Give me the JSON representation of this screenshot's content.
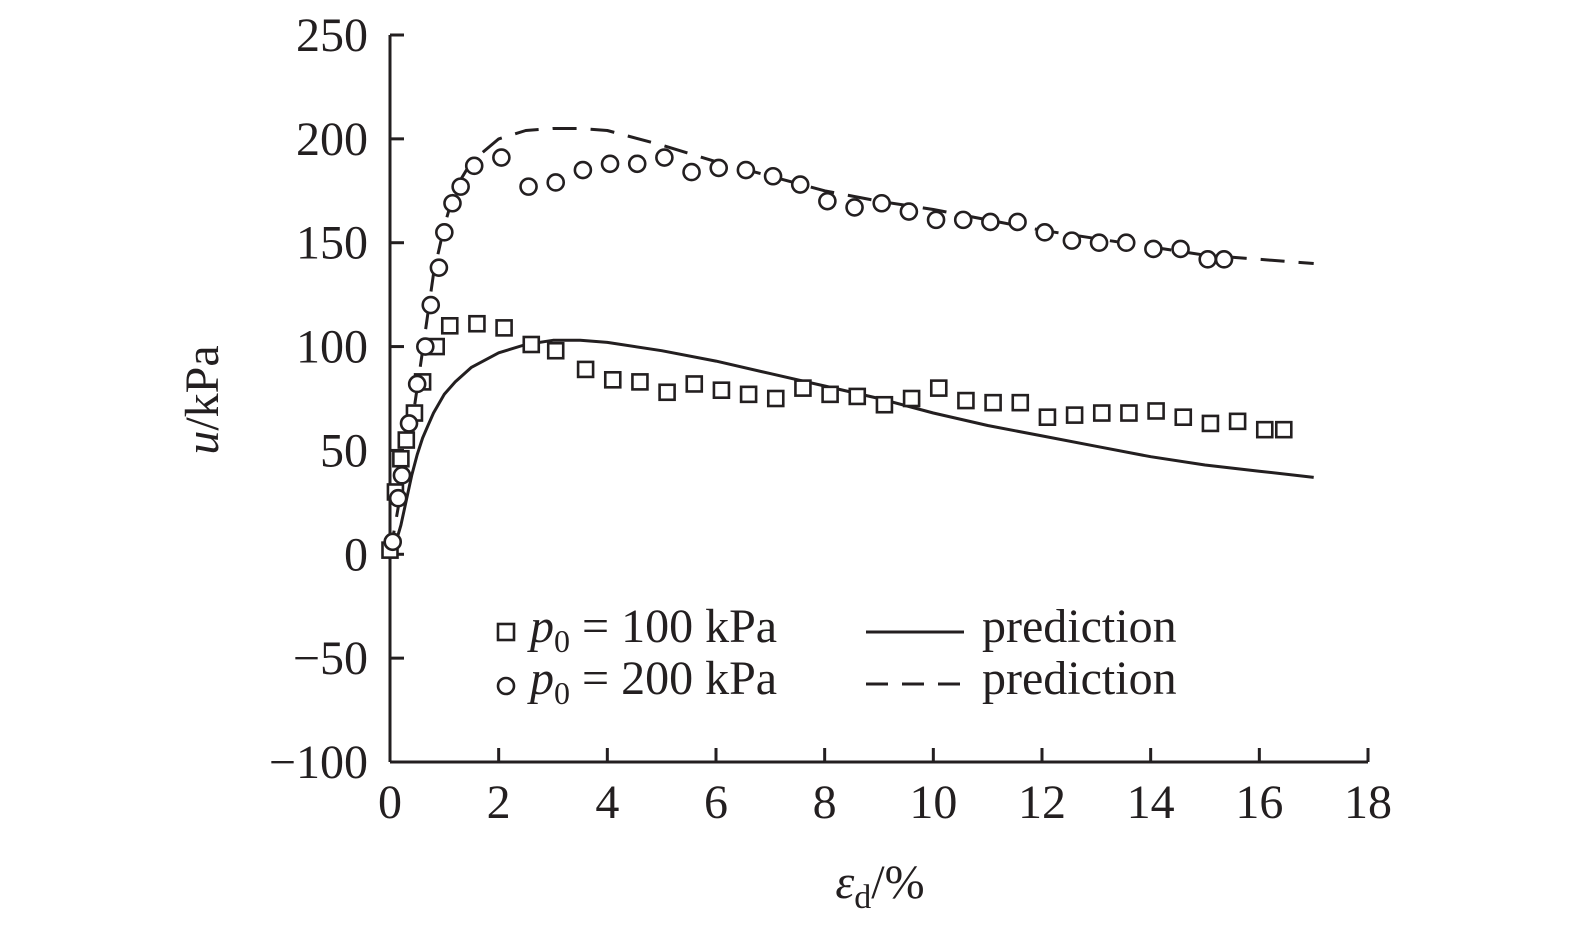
{
  "chart_data": {
    "type": "scatter",
    "xlabel": {
      "symbol": "ε",
      "subscript": "d",
      "unit": "/%"
    },
    "ylabel": {
      "symbol": "u",
      "unit": "/kPa"
    },
    "xlim": [
      0,
      18
    ],
    "ylim": [
      -100,
      250
    ],
    "xticks": [
      0,
      2,
      4,
      6,
      8,
      10,
      12,
      14,
      16,
      18
    ],
    "yticks": [
      -100,
      -50,
      0,
      50,
      100,
      150,
      200,
      250
    ],
    "xtick_labels": [
      "0",
      "2",
      "4",
      "6",
      "8",
      "10",
      "12",
      "14",
      "16",
      "18"
    ],
    "ytick_labels": [
      "−100",
      "−50",
      "0",
      "50",
      "100",
      "150",
      "200",
      "250"
    ],
    "grid": false,
    "legend_position": "bottom-center",
    "series": [
      {
        "name": "p0 = 100 kPa",
        "legend": {
          "symbol": "p",
          "subscript": "0",
          "text": " = 100 kPa"
        },
        "marker": "square",
        "points": [
          [
            0.0,
            2
          ],
          [
            0.1,
            30
          ],
          [
            0.2,
            46
          ],
          [
            0.3,
            55
          ],
          [
            0.45,
            68
          ],
          [
            0.6,
            83
          ],
          [
            0.85,
            100
          ],
          [
            1.1,
            110
          ],
          [
            1.6,
            111
          ],
          [
            2.1,
            109
          ],
          [
            2.6,
            101
          ],
          [
            3.05,
            98
          ],
          [
            3.6,
            89
          ],
          [
            4.1,
            84
          ],
          [
            4.6,
            83
          ],
          [
            5.1,
            78
          ],
          [
            5.6,
            82
          ],
          [
            6.1,
            79
          ],
          [
            6.6,
            77
          ],
          [
            7.1,
            75
          ],
          [
            7.6,
            80
          ],
          [
            8.1,
            77
          ],
          [
            8.6,
            76
          ],
          [
            9.1,
            72
          ],
          [
            9.6,
            75
          ],
          [
            10.1,
            80
          ],
          [
            10.6,
            74
          ],
          [
            11.1,
            73
          ],
          [
            11.6,
            73
          ],
          [
            12.1,
            66
          ],
          [
            12.6,
            67
          ],
          [
            13.1,
            68
          ],
          [
            13.6,
            68
          ],
          [
            14.1,
            69
          ],
          [
            14.6,
            66
          ],
          [
            15.1,
            63
          ],
          [
            15.6,
            64
          ],
          [
            16.1,
            60
          ],
          [
            16.45,
            60
          ]
        ]
      },
      {
        "name": "p0 = 200 kPa",
        "legend": {
          "symbol": "p",
          "subscript": "0",
          "text": " = 200 kPa"
        },
        "marker": "circle",
        "points": [
          [
            0.05,
            6
          ],
          [
            0.15,
            27
          ],
          [
            0.22,
            38
          ],
          [
            0.35,
            63
          ],
          [
            0.5,
            82
          ],
          [
            0.65,
            100
          ],
          [
            0.75,
            120
          ],
          [
            0.9,
            138
          ],
          [
            1.0,
            155
          ],
          [
            1.15,
            169
          ],
          [
            1.3,
            177
          ],
          [
            1.55,
            187
          ],
          [
            2.05,
            191
          ],
          [
            2.55,
            177
          ],
          [
            3.05,
            179
          ],
          [
            3.55,
            185
          ],
          [
            4.05,
            188
          ],
          [
            4.55,
            188
          ],
          [
            5.05,
            191
          ],
          [
            5.55,
            184
          ],
          [
            6.05,
            186
          ],
          [
            6.55,
            185
          ],
          [
            7.05,
            182
          ],
          [
            7.55,
            178
          ],
          [
            8.05,
            170
          ],
          [
            8.55,
            167
          ],
          [
            9.05,
            169
          ],
          [
            9.55,
            165
          ],
          [
            10.05,
            161
          ],
          [
            10.55,
            161
          ],
          [
            11.05,
            160
          ],
          [
            11.55,
            160
          ],
          [
            12.05,
            155
          ],
          [
            12.55,
            151
          ],
          [
            13.05,
            150
          ],
          [
            13.55,
            150
          ],
          [
            14.05,
            147
          ],
          [
            14.55,
            147
          ],
          [
            15.05,
            142
          ],
          [
            15.35,
            142
          ]
        ]
      },
      {
        "name": "prediction",
        "line_style": "solid",
        "points": [
          [
            0.0,
            0
          ],
          [
            0.1,
            5
          ],
          [
            0.2,
            14
          ],
          [
            0.3,
            26
          ],
          [
            0.4,
            38
          ],
          [
            0.5,
            48
          ],
          [
            0.6,
            56
          ],
          [
            0.7,
            62
          ],
          [
            0.8,
            68
          ],
          [
            1.0,
            77
          ],
          [
            1.2,
            83
          ],
          [
            1.5,
            90
          ],
          [
            2.0,
            97
          ],
          [
            2.5,
            101
          ],
          [
            3.0,
            103
          ],
          [
            3.5,
            103
          ],
          [
            4.0,
            102
          ],
          [
            5.0,
            98
          ],
          [
            6.0,
            93
          ],
          [
            7.0,
            87
          ],
          [
            8.0,
            81
          ],
          [
            9.0,
            75
          ],
          [
            10.0,
            68
          ],
          [
            11.0,
            62
          ],
          [
            12.0,
            57
          ],
          [
            13.0,
            52
          ],
          [
            14.0,
            47
          ],
          [
            15.0,
            43
          ],
          [
            16.0,
            40
          ],
          [
            17.0,
            37
          ]
        ]
      },
      {
        "name": "prediction",
        "line_style": "dashed",
        "points": [
          [
            0.0,
            0
          ],
          [
            0.2,
            30
          ],
          [
            0.4,
            62
          ],
          [
            0.6,
            98
          ],
          [
            0.8,
            135
          ],
          [
            1.0,
            158
          ],
          [
            1.2,
            176
          ],
          [
            1.5,
            189
          ],
          [
            2.0,
            200
          ],
          [
            2.5,
            204
          ],
          [
            3.0,
            205
          ],
          [
            3.5,
            205
          ],
          [
            4.0,
            204
          ],
          [
            5.0,
            197
          ],
          [
            6.0,
            189
          ],
          [
            7.0,
            182
          ],
          [
            8.0,
            175
          ],
          [
            9.0,
            170
          ],
          [
            10.0,
            166
          ],
          [
            11.0,
            161
          ],
          [
            12.0,
            156
          ],
          [
            13.0,
            152
          ],
          [
            14.0,
            148
          ],
          [
            15.0,
            144
          ],
          [
            16.0,
            142
          ],
          [
            17.0,
            140
          ]
        ]
      }
    ]
  }
}
